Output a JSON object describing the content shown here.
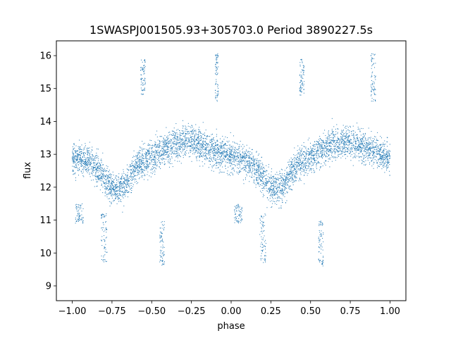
{
  "chart_data": {
    "type": "scatter",
    "title": "1SWASPJ001505.93+305703.0 Period 3890227.5s",
    "xlabel": "phase",
    "ylabel": "flux",
    "xlim": [
      -1.1,
      1.1
    ],
    "ylim": [
      8.55,
      16.45
    ],
    "x_ticks": [
      -1.0,
      -0.75,
      -0.5,
      -0.25,
      0.0,
      0.25,
      0.5,
      0.75,
      1.0
    ],
    "x_tick_labels": [
      "−1.00",
      "−0.75",
      "−0.50",
      "−0.25",
      "0.00",
      "0.25",
      "0.50",
      "0.75",
      "1.00"
    ],
    "y_ticks": [
      9,
      10,
      11,
      12,
      13,
      14,
      15,
      16
    ],
    "y_tick_labels": [
      "9",
      "10",
      "11",
      "12",
      "13",
      "14",
      "15",
      "16"
    ],
    "grid": false,
    "legend": "none",
    "marker_color": "#1f77b4",
    "series": [
      {
        "trend": [
          [
            -1.0,
            12.9
          ],
          [
            -0.95,
            12.9
          ],
          [
            -0.9,
            12.8
          ],
          [
            -0.85,
            12.6
          ],
          [
            -0.8,
            12.3
          ],
          [
            -0.75,
            12.0
          ],
          [
            -0.7,
            11.9
          ],
          [
            -0.65,
            12.2
          ],
          [
            -0.6,
            12.6
          ],
          [
            -0.55,
            12.8
          ],
          [
            -0.5,
            12.9
          ],
          [
            -0.45,
            13.1
          ],
          [
            -0.4,
            13.2
          ],
          [
            -0.35,
            13.3
          ],
          [
            -0.3,
            13.4
          ],
          [
            -0.25,
            13.4
          ],
          [
            -0.2,
            13.3
          ],
          [
            -0.15,
            13.2
          ],
          [
            -0.1,
            13.1
          ],
          [
            -0.05,
            13.0
          ],
          [
            0.0,
            12.9
          ],
          [
            0.05,
            12.9
          ],
          [
            0.1,
            12.8
          ],
          [
            0.15,
            12.6
          ],
          [
            0.2,
            12.3
          ],
          [
            0.25,
            12.0
          ],
          [
            0.3,
            11.9
          ],
          [
            0.35,
            12.2
          ],
          [
            0.4,
            12.6
          ],
          [
            0.45,
            12.8
          ],
          [
            0.5,
            12.9
          ],
          [
            0.55,
            13.1
          ],
          [
            0.6,
            13.2
          ],
          [
            0.65,
            13.3
          ],
          [
            0.7,
            13.4
          ],
          [
            0.75,
            13.4
          ],
          [
            0.8,
            13.3
          ],
          [
            0.85,
            13.2
          ],
          [
            0.9,
            13.1
          ],
          [
            0.95,
            13.0
          ],
          [
            1.0,
            12.9
          ]
        ],
        "scatter_spread": 0.45,
        "outlier_clusters": [
          {
            "x": [
              -0.57,
              -0.54
            ],
            "y": [
              14.8,
              15.9
            ]
          },
          {
            "x": [
              0.43,
              0.46
            ],
            "y": [
              14.8,
              15.9
            ]
          },
          {
            "x": [
              -0.45,
              -0.42
            ],
            "y": [
              9.6,
              11.0
            ]
          },
          {
            "x": [
              0.55,
              0.58
            ],
            "y": [
              9.6,
              11.0
            ]
          },
          {
            "x": [
              -0.98,
              -0.93
            ],
            "y": [
              10.9,
              11.5
            ]
          },
          {
            "x": [
              0.02,
              0.07
            ],
            "y": [
              10.9,
              11.5
            ]
          },
          {
            "x": [
              -0.1,
              -0.08
            ],
            "y": [
              14.6,
              16.1
            ]
          },
          {
            "x": [
              0.88,
              0.91
            ],
            "y": [
              14.6,
              16.1
            ]
          },
          {
            "x": [
              -0.82,
              -0.78
            ],
            "y": [
              9.7,
              11.2
            ]
          },
          {
            "x": [
              0.18,
              0.22
            ],
            "y": [
              9.7,
              11.2
            ]
          }
        ]
      }
    ]
  }
}
